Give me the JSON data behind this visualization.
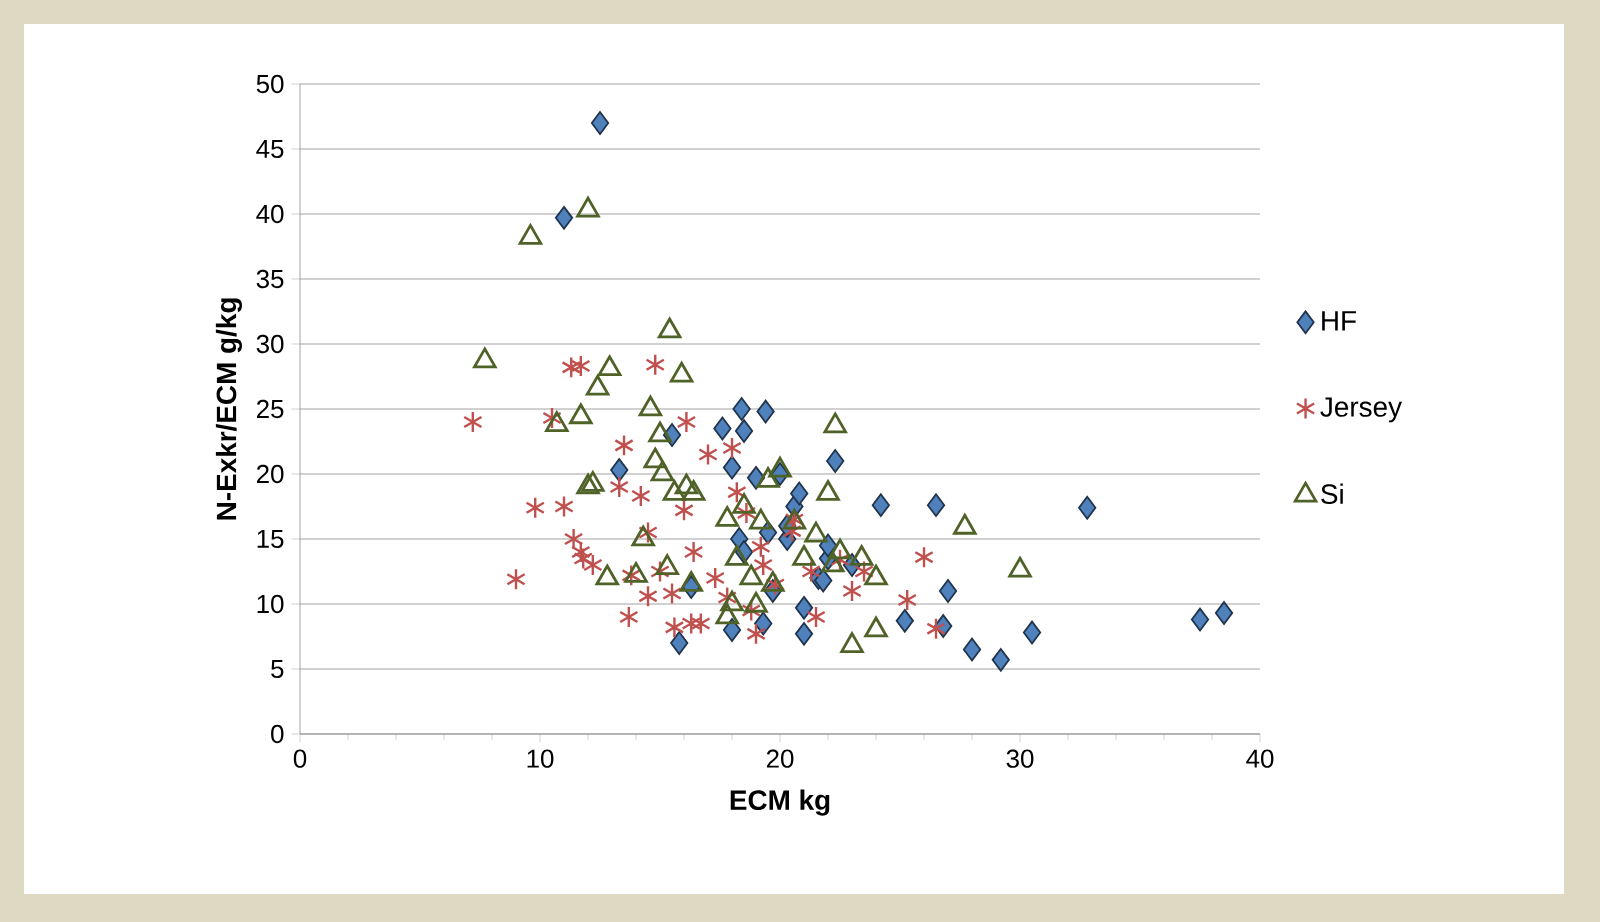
{
  "chart_data": {
    "type": "scatter",
    "xlabel": "ECM kg",
    "ylabel": "N-Exkr/ECM g/kg",
    "xlim": [
      0,
      40
    ],
    "ylim": [
      0,
      50
    ],
    "xticks": [
      0,
      10,
      20,
      30,
      40
    ],
    "yticks": [
      0,
      5,
      10,
      15,
      20,
      25,
      30,
      35,
      40,
      45,
      50
    ],
    "grid": "y",
    "legend": "right",
    "series": [
      {
        "name": "HF",
        "color": "#4f81bd",
        "marker": "diamond",
        "x": [
          12.5,
          11,
          13.3,
          15.5,
          15.8,
          16.3,
          17.6,
          18,
          18.4,
          18.5,
          18.3,
          18.5,
          19,
          19.4,
          19.5,
          19.7,
          19.3,
          20,
          20.3,
          20.6,
          20.8,
          21,
          21,
          21.6,
          22,
          22.3,
          21.8,
          23,
          24.2,
          25.2,
          26.5,
          26.8,
          27,
          28,
          29.2,
          30.5,
          32.8,
          37.5,
          38.5,
          18,
          20.3,
          22
        ],
        "values": [
          47,
          39.7,
          20.3,
          23,
          7,
          11.3,
          23.5,
          20.5,
          25,
          23.3,
          15,
          14,
          19.7,
          24.8,
          15.5,
          11,
          8.5,
          20,
          15,
          17.5,
          18.5,
          9.7,
          7.7,
          12,
          13.5,
          21,
          11.8,
          13,
          17.6,
          8.7,
          17.6,
          8.3,
          11,
          6.5,
          5.7,
          7.8,
          17.4,
          8.8,
          9.3,
          8,
          16,
          14.5
        ]
      },
      {
        "name": "Jersey",
        "color": "#c0504d",
        "marker": "cross",
        "x": [
          7.2,
          9,
          9.8,
          10.5,
          11,
          11.3,
          11.7,
          11.4,
          11.8,
          12.2,
          11.7,
          13.3,
          13.5,
          13.7,
          13.8,
          14.2,
          14.5,
          14.5,
          14.8,
          15,
          15.5,
          15.6,
          16,
          16.1,
          16.4,
          16.3,
          16.7,
          17,
          17.3,
          18,
          18.2,
          18.6,
          18.8,
          19,
          19.3,
          19.8,
          20.5,
          20.6,
          21.5,
          21.3,
          22.5,
          23,
          23.5,
          25.3,
          26,
          26.5,
          19.2,
          17.8
        ],
        "values": [
          24,
          11.9,
          17.4,
          24.3,
          17.5,
          28.2,
          28.3,
          15,
          13.5,
          13,
          14,
          19,
          22.2,
          9,
          12.2,
          18.3,
          10.6,
          15.5,
          28.4,
          12.5,
          10.8,
          8.2,
          17.2,
          24,
          14,
          8.5,
          8.5,
          21.5,
          12,
          22,
          18.6,
          17,
          9.5,
          7.7,
          13,
          11.5,
          15.6,
          16.5,
          9,
          12.5,
          13.4,
          11,
          12.5,
          10.3,
          13.6,
          8.1,
          14.4,
          10.5
        ]
      },
      {
        "name": "Si",
        "color": "#4f6228",
        "marker": "triangle",
        "x": [
          7.7,
          9.6,
          12,
          10.7,
          11.7,
          12,
          12.2,
          12.4,
          12.9,
          12.8,
          14,
          14.3,
          14.6,
          14.8,
          15,
          15.1,
          15.4,
          15.3,
          15.6,
          15.9,
          16.1,
          16.4,
          16.3,
          17.8,
          17.8,
          18,
          18.2,
          18.5,
          18.8,
          19,
          19.2,
          19.5,
          19.7,
          20,
          20.6,
          21,
          21.5,
          22,
          22.3,
          22.5,
          23,
          23.4,
          24,
          24,
          27.7,
          30,
          22.2
        ],
        "values": [
          28.7,
          38.2,
          40.3,
          23.8,
          24.4,
          19,
          19.2,
          26.6,
          28.1,
          12,
          12.2,
          15,
          25,
          21,
          23,
          20,
          31,
          12.8,
          18.5,
          27.6,
          19,
          18.5,
          11.5,
          16.5,
          9,
          10,
          13.5,
          17.5,
          12,
          9.9,
          16.3,
          19.5,
          11.5,
          20.3,
          16.3,
          13.5,
          15.3,
          18.5,
          23.7,
          14,
          6.8,
          13.5,
          12,
          8,
          15.9,
          12.6,
          13
        ]
      }
    ]
  }
}
